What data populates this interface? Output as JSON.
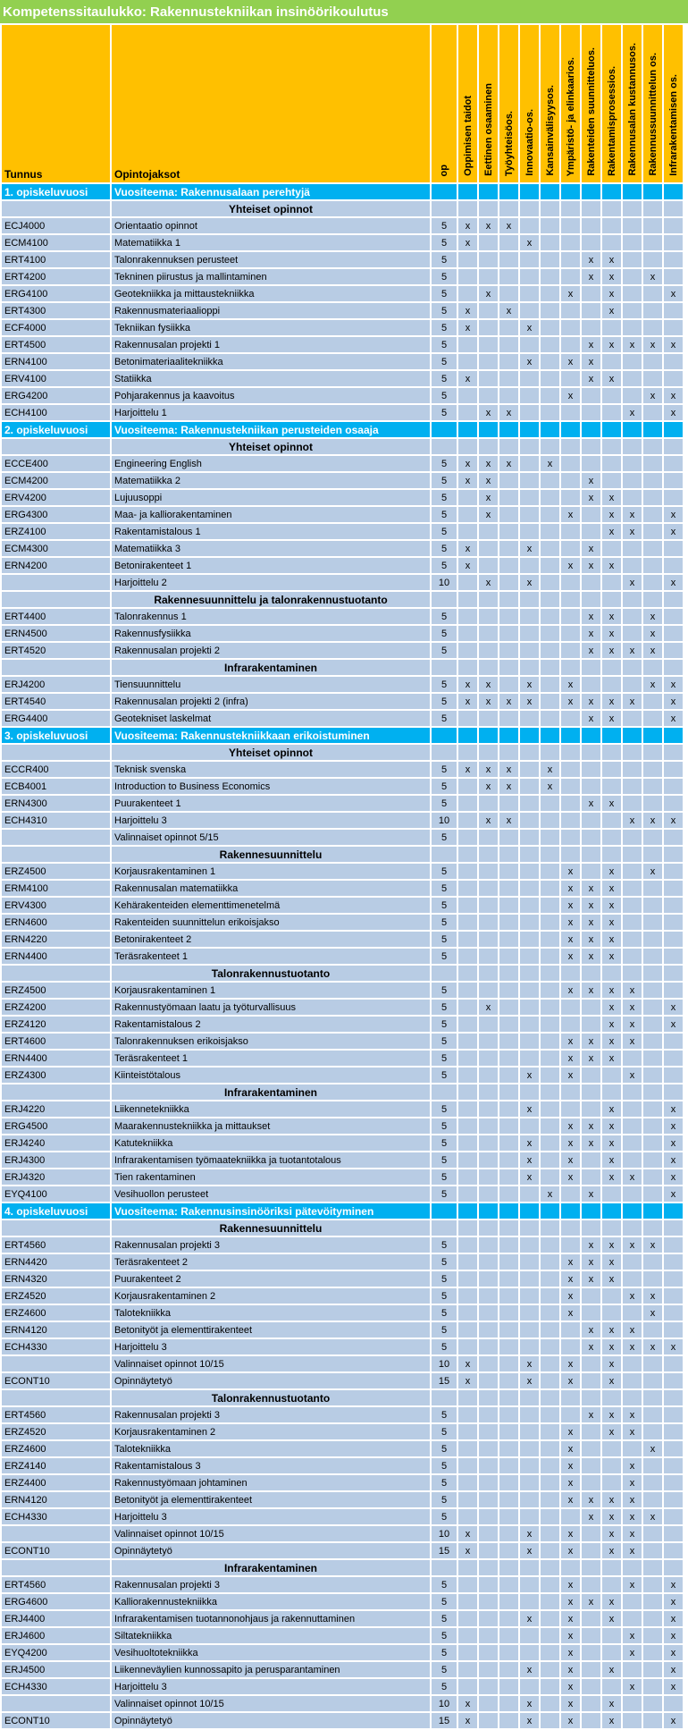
{
  "title": "Kompetenssitaulukko: Rakennustekniikan insinöörikoulutus",
  "colors": {
    "title_bg": "#92D050",
    "header_bg": "#FFC000",
    "year_row_bg": "#00B0F0",
    "row_bg": "#B8CCE4",
    "grid": "#FFFFFF"
  },
  "table": {
    "mark_char": "x",
    "col_tunnus": "Tunnus",
    "col_opintojaksot": "Opintojaksot",
    "col_op": "op",
    "competence_columns": [
      "Oppimisen taidot",
      "Eettinen osaaminen",
      "Työyhteisöos.",
      "Innovaatio-os.",
      "Kansainvälisyysos.",
      "Ympäristö- ja elinkaarios.",
      "Rakenteiden suunnitteluos.",
      "Rakentamisprosessios.",
      "Rakennusalan kustannusos.",
      "Rakennussuunnittelun os.",
      "Infrarakentamisen os."
    ],
    "rows": [
      {
        "type": "year",
        "tunnus": "1. opiskeluvuosi",
        "theme": "Vuositeema: Rakennusalaan perehtyjä"
      },
      {
        "type": "section",
        "label": "Yhteiset opinnot"
      },
      {
        "type": "course",
        "code": "ECJ4000",
        "name": "Orientaatio opinnot",
        "op": "5",
        "marks": [
          1,
          2,
          3
        ]
      },
      {
        "type": "course",
        "code": "ECM4100",
        "name": "Matematiikka 1",
        "op": "5",
        "marks": [
          1,
          4
        ]
      },
      {
        "type": "course",
        "code": "ERT4100",
        "name": "Talonrakennuksen perusteet",
        "op": "5",
        "marks": [
          7,
          8
        ]
      },
      {
        "type": "course",
        "code": "ERT4200",
        "name": "Tekninen piirustus ja mallintaminen",
        "op": "5",
        "marks": [
          7,
          8,
          10
        ]
      },
      {
        "type": "course",
        "code": "ERG4100",
        "name": "Geotekniikka ja mittaustekniikka",
        "op": "5",
        "marks": [
          2,
          6,
          8,
          11
        ]
      },
      {
        "type": "course",
        "code": "ERT4300",
        "name": "Rakennusmateriaalioppi",
        "op": "5",
        "marks": [
          1,
          3,
          8
        ]
      },
      {
        "type": "course",
        "code": "ECF4000",
        "name": "Tekniikan fysiikka",
        "op": "5",
        "marks": [
          1,
          4
        ]
      },
      {
        "type": "course",
        "code": "ERT4500",
        "name": "Rakennusalan projekti 1",
        "op": "5",
        "marks": [
          7,
          8,
          9,
          10,
          11
        ]
      },
      {
        "type": "course",
        "code": "ERN4100",
        "name": "Betonimateriaalitekniikka",
        "op": "5",
        "marks": [
          4,
          6,
          7
        ]
      },
      {
        "type": "course",
        "code": "ERV4100",
        "name": "Statiikka",
        "op": "5",
        "marks": [
          1,
          7,
          8
        ]
      },
      {
        "type": "course",
        "code": "ERG4200",
        "name": "Pohjarakennus ja kaavoitus",
        "op": "5",
        "marks": [
          6,
          10,
          11
        ]
      },
      {
        "type": "course",
        "code": "ECH4100",
        "name": "Harjoittelu 1",
        "op": "5",
        "marks": [
          2,
          3,
          9,
          11
        ]
      },
      {
        "type": "year",
        "tunnus": "2. opiskeluvuosi",
        "theme": "Vuositeema: Rakennustekniikan perusteiden osaaja"
      },
      {
        "type": "section",
        "label": "Yhteiset opinnot"
      },
      {
        "type": "course",
        "code": "ECCE400",
        "name": "Engineering English",
        "op": "5",
        "marks": [
          1,
          2,
          3,
          5
        ]
      },
      {
        "type": "course",
        "code": "ECM4200",
        "name": "Matematiikka 2",
        "op": "5",
        "marks": [
          1,
          2,
          7
        ]
      },
      {
        "type": "course",
        "code": "ERV4200",
        "name": "Lujuusoppi",
        "op": "5",
        "marks": [
          2,
          7,
          8
        ]
      },
      {
        "type": "course",
        "code": "ERG4300",
        "name": "Maa- ja kalliorakentaminen",
        "op": "5",
        "marks": [
          2,
          6,
          8,
          9,
          11
        ]
      },
      {
        "type": "course",
        "code": "ERZ4100",
        "name": "Rakentamistalous 1",
        "op": "5",
        "marks": [
          8,
          9,
          11
        ]
      },
      {
        "type": "course",
        "code": "ECM4300",
        "name": "Matematiikka 3",
        "op": "5",
        "marks": [
          1,
          4,
          7
        ]
      },
      {
        "type": "course",
        "code": "ERN4200",
        "name": "Betonirakenteet 1",
        "op": "5",
        "marks": [
          1,
          6,
          7,
          8
        ]
      },
      {
        "type": "course",
        "code": "",
        "name": "Harjoittelu 2",
        "op": "10",
        "marks": [
          2,
          4,
          9,
          11
        ]
      },
      {
        "type": "section",
        "label": "Rakennesuunnittelu ja talonrakennustuotanto"
      },
      {
        "type": "course",
        "code": "ERT4400",
        "name": "Talonrakennus 1",
        "op": "5",
        "marks": [
          7,
          8,
          10
        ]
      },
      {
        "type": "course",
        "code": "ERN4500",
        "name": "Rakennusfysiikka",
        "op": "5",
        "marks": [
          7,
          8,
          10
        ]
      },
      {
        "type": "course",
        "code": "ERT4520",
        "name": "Rakennusalan projekti 2",
        "op": "5",
        "marks": [
          7,
          8,
          9,
          10
        ]
      },
      {
        "type": "section",
        "label": "Infrarakentaminen"
      },
      {
        "type": "course",
        "code": "ERJ4200",
        "name": "Tiensuunnittelu",
        "op": "5",
        "marks": [
          1,
          2,
          4,
          6,
          10,
          11
        ]
      },
      {
        "type": "course",
        "code": "ERT4540",
        "name": "Rakennusalan projekti 2 (infra)",
        "op": "5",
        "marks": [
          1,
          2,
          3,
          4,
          6,
          7,
          8,
          9,
          11
        ]
      },
      {
        "type": "course",
        "code": "ERG4400",
        "name": "Geotekniset laskelmat",
        "op": "5",
        "marks": [
          7,
          8,
          11
        ]
      },
      {
        "type": "year",
        "tunnus": "3. opiskeluvuosi",
        "theme": "Vuositeema: Rakennustekniikkaan erikoistuminen"
      },
      {
        "type": "section",
        "label": "Yhteiset opinnot"
      },
      {
        "type": "course",
        "code": "ECCR400",
        "name": "Teknisk svenska",
        "op": "5",
        "marks": [
          1,
          2,
          3,
          5
        ]
      },
      {
        "type": "course",
        "code": "ECB4001",
        "name": "Introduction to Business Economics",
        "op": "5",
        "marks": [
          2,
          3,
          5
        ]
      },
      {
        "type": "course",
        "code": "ERN4300",
        "name": "Puurakenteet 1",
        "op": "5",
        "marks": [
          7,
          8
        ]
      },
      {
        "type": "course",
        "code": "ECH4310",
        "name": "Harjoittelu 3",
        "op": "10",
        "marks": [
          2,
          3,
          9,
          10,
          11
        ]
      },
      {
        "type": "course",
        "code": "",
        "name": "Valinnaiset opinnot 5/15",
        "op": "5",
        "marks": []
      },
      {
        "type": "section",
        "label": "Rakennesuunnittelu"
      },
      {
        "type": "course",
        "code": "ERZ4500",
        "name": "Korjausrakentaminen 1",
        "op": "5",
        "marks": [
          6,
          8,
          10
        ]
      },
      {
        "type": "course",
        "code": "ERM4100",
        "name": "Rakennusalan matematiikka",
        "op": "5",
        "marks": [
          6,
          7,
          8
        ]
      },
      {
        "type": "course",
        "code": "ERV4300",
        "name": "Kehärakenteiden elementtimenetelmä",
        "op": "5",
        "marks": [
          6,
          7,
          8
        ]
      },
      {
        "type": "course",
        "code": "ERN4600",
        "name": "Rakenteiden suunnittelun erikoisjakso",
        "op": "5",
        "marks": [
          6,
          7,
          8
        ]
      },
      {
        "type": "course",
        "code": "ERN4220",
        "name": "Betonirakenteet 2",
        "op": "5",
        "marks": [
          6,
          7,
          8
        ]
      },
      {
        "type": "course",
        "code": "ERN4400",
        "name": "Teräsrakenteet 1",
        "op": "5",
        "marks": [
          6,
          7,
          8
        ]
      },
      {
        "type": "section",
        "label": "Talonrakennustuotanto"
      },
      {
        "type": "course",
        "code": "ERZ4500",
        "name": "Korjausrakentaminen 1",
        "op": "5",
        "marks": [
          6,
          7,
          8,
          9
        ]
      },
      {
        "type": "course",
        "code": "ERZ4200",
        "name": "Rakennustyömaan laatu ja työturvallisuus",
        "op": "5",
        "marks": [
          2,
          8,
          9,
          11
        ]
      },
      {
        "type": "course",
        "code": "ERZ4120",
        "name": "Rakentamistalous 2",
        "op": "5",
        "marks": [
          8,
          9,
          11
        ]
      },
      {
        "type": "course",
        "code": "ERT4600",
        "name": "Talonrakennuksen erikoisjakso",
        "op": "5",
        "marks": [
          6,
          7,
          8,
          9
        ]
      },
      {
        "type": "course",
        "code": "ERN4400",
        "name": "Teräsrakenteet 1",
        "op": "5",
        "marks": [
          6,
          7,
          8
        ]
      },
      {
        "type": "course",
        "code": "ERZ4300",
        "name": "Kiinteistötalous",
        "op": "5",
        "marks": [
          4,
          6,
          9
        ]
      },
      {
        "type": "section",
        "label": "Infrarakentaminen"
      },
      {
        "type": "course",
        "code": "ERJ4220",
        "name": "Liikennetekniikka",
        "op": "5",
        "marks": [
          4,
          8,
          11
        ]
      },
      {
        "type": "course",
        "code": "ERG4500",
        "name": "Maarakennustekniikka ja mittaukset",
        "op": "5",
        "marks": [
          6,
          7,
          8,
          11
        ]
      },
      {
        "type": "course",
        "code": "ERJ4240",
        "name": "Katutekniikka",
        "op": "5",
        "marks": [
          4,
          6,
          7,
          8,
          11
        ]
      },
      {
        "type": "course",
        "code": "ERJ4300",
        "name": "Infrarakentamisen työmaatekniikka ja tuotantotalous",
        "op": "5",
        "marks": [
          4,
          6,
          8,
          11
        ]
      },
      {
        "type": "course",
        "code": "ERJ4320",
        "name": "Tien rakentaminen",
        "op": "5",
        "marks": [
          4,
          6,
          8,
          9,
          11
        ]
      },
      {
        "type": "course",
        "code": "EYQ4100",
        "name": "Vesihuollon perusteet",
        "op": "5",
        "marks": [
          5,
          7,
          11
        ]
      },
      {
        "type": "year",
        "tunnus": "4. opiskeluvuosi",
        "theme": "Vuositeema: Rakennusinsinööriksi pätevöityminen"
      },
      {
        "type": "section",
        "label": "Rakennesuunnittelu"
      },
      {
        "type": "course",
        "code": "ERT4560",
        "name": "Rakennusalan projekti 3",
        "op": "5",
        "marks": [
          7,
          8,
          9,
          10
        ]
      },
      {
        "type": "course",
        "code": "ERN4420",
        "name": "Teräsrakenteet 2",
        "op": "5",
        "marks": [
          6,
          7,
          8
        ]
      },
      {
        "type": "course",
        "code": "ERN4320",
        "name": "Puurakenteet 2",
        "op": "5",
        "marks": [
          6,
          7,
          8
        ]
      },
      {
        "type": "course",
        "code": "ERZ4520",
        "name": "Korjausrakentaminen 2",
        "op": "5",
        "marks": [
          6,
          9,
          10
        ]
      },
      {
        "type": "course",
        "code": "ERZ4600",
        "name": "Talotekniikka",
        "op": "5",
        "marks": [
          6,
          10
        ]
      },
      {
        "type": "course",
        "code": "ERN4120",
        "name": "Betonityöt ja elementtirakenteet",
        "op": "5",
        "marks": [
          7,
          8,
          9
        ]
      },
      {
        "type": "course",
        "code": "ECH4330",
        "name": "Harjoittelu 3",
        "op": "5",
        "marks": [
          7,
          8,
          9,
          10,
          11
        ]
      },
      {
        "type": "course",
        "code": "",
        "name": "Valinnaiset opinnot 10/15",
        "op": "10",
        "marks": [
          1,
          4,
          6,
          8
        ]
      },
      {
        "type": "course",
        "code": "ECONT10",
        "name": "Opinnäytetyö",
        "op": "15",
        "marks": [
          1,
          4,
          6,
          8
        ]
      },
      {
        "type": "section",
        "label": "Talonrakennustuotanto"
      },
      {
        "type": "course",
        "code": "ERT4560",
        "name": "Rakennusalan projekti 3",
        "op": "5",
        "marks": [
          7,
          8,
          9
        ]
      },
      {
        "type": "course",
        "code": "ERZ4520",
        "name": "Korjausrakentaminen 2",
        "op": "5",
        "marks": [
          6,
          8,
          9
        ]
      },
      {
        "type": "course",
        "code": "ERZ4600",
        "name": "Talotekniikka",
        "op": "5",
        "marks": [
          6,
          10
        ]
      },
      {
        "type": "course",
        "code": "ERZ4140",
        "name": "Rakentamistalous 3",
        "op": "5",
        "marks": [
          6,
          9
        ]
      },
      {
        "type": "course",
        "code": "ERZ4400",
        "name": "Rakennustyömaan johtaminen",
        "op": "5",
        "marks": [
          6,
          9
        ]
      },
      {
        "type": "course",
        "code": "ERN4120",
        "name": "Betonityöt ja elementtirakenteet",
        "op": "5",
        "marks": [
          6,
          7,
          8,
          9
        ]
      },
      {
        "type": "course",
        "code": "ECH4330",
        "name": "Harjoittelu 3",
        "op": "5",
        "marks": [
          7,
          8,
          9,
          10
        ]
      },
      {
        "type": "course",
        "code": "",
        "name": "Valinnaiset opinnot 10/15",
        "op": "10",
        "marks": [
          1,
          4,
          6,
          8,
          9
        ]
      },
      {
        "type": "course",
        "code": "ECONT10",
        "name": "Opinnäytetyö",
        "op": "15",
        "marks": [
          1,
          4,
          6,
          8,
          9
        ]
      },
      {
        "type": "section",
        "label": "Infrarakentaminen"
      },
      {
        "type": "course",
        "code": "ERT4560",
        "name": "Rakennusalan projekti 3",
        "op": "5",
        "marks": [
          6,
          9,
          11
        ]
      },
      {
        "type": "course",
        "code": "ERG4600",
        "name": "Kalliorakennustekniikka",
        "op": "5",
        "marks": [
          6,
          7,
          8,
          11
        ]
      },
      {
        "type": "course",
        "code": "ERJ4400",
        "name": "Infrarakentamisen tuotannonohjaus ja rakennuttaminen",
        "op": "5",
        "marks": [
          4,
          6,
          8,
          11
        ]
      },
      {
        "type": "course",
        "code": "ERJ4600",
        "name": "Siltatekniikka",
        "op": "5",
        "marks": [
          6,
          9,
          11
        ]
      },
      {
        "type": "course",
        "code": "EYQ4200",
        "name": "Vesihuoltotekniikka",
        "op": "5",
        "marks": [
          6,
          9,
          11
        ]
      },
      {
        "type": "course",
        "code": "ERJ4500",
        "name": "Liikenneväylien kunnossapito ja perusparantaminen",
        "op": "5",
        "marks": [
          4,
          6,
          8,
          11
        ]
      },
      {
        "type": "course",
        "code": "ECH4330",
        "name": "Harjoittelu 3",
        "op": "5",
        "marks": [
          6,
          9,
          11
        ]
      },
      {
        "type": "course",
        "code": "",
        "name": "Valinnaiset opinnot 10/15",
        "op": "10",
        "marks": [
          1,
          4,
          6,
          8
        ]
      },
      {
        "type": "course",
        "code": "ECONT10",
        "name": "Opinnäytetyö",
        "op": "15",
        "marks": [
          1,
          4,
          6,
          8,
          11
        ]
      }
    ]
  }
}
